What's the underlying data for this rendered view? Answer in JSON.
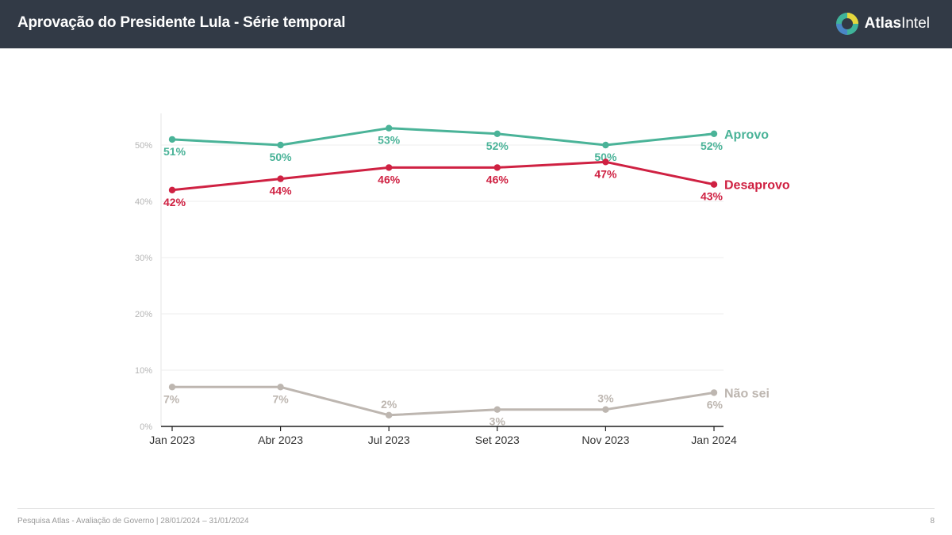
{
  "header": {
    "title": "Aprovação do Presidente Lula - Série temporal",
    "brand_bold": "Atlas",
    "brand_regular": "Intel"
  },
  "footer": {
    "source": "Pesquisa Atlas - Avaliação de Governo | 28/01/2024 – 31/01/2024",
    "page_number": "8"
  },
  "colors": {
    "header_bg": "#323a46",
    "aprovo": "#4ab398",
    "desaprovo": "#cf2142",
    "nao_sei": "#bdb6b0",
    "logo_teal": "#3fb39a",
    "logo_yellow": "#e5d63c",
    "logo_blue": "#4a86c6"
  },
  "chart_data": {
    "type": "line",
    "title": "",
    "xlabel": "",
    "ylabel": "",
    "categories": [
      "Jan 2023",
      "Abr 2023",
      "Jul 2023",
      "Set 2023",
      "Nov 2023",
      "Jan 2024"
    ],
    "ylim": [
      0,
      55
    ],
    "yticks": [
      0,
      10,
      20,
      30,
      40,
      50
    ],
    "ytick_labels": [
      "0%",
      "10%",
      "20%",
      "30%",
      "40%",
      "50%"
    ],
    "grid": true,
    "series": [
      {
        "name": "Aprovo",
        "color": "#4ab398",
        "values": [
          51,
          50,
          53,
          52,
          50,
          52
        ],
        "labels": [
          "51%",
          "50%",
          "53%",
          "52%",
          "50%",
          "52%"
        ]
      },
      {
        "name": "Desaprovo",
        "color": "#cf2142",
        "values": [
          42,
          44,
          46,
          46,
          47,
          43
        ],
        "labels": [
          "42%",
          "44%",
          "46%",
          "46%",
          "47%",
          "43%"
        ]
      },
      {
        "name": "Não sei",
        "color": "#bdb6b0",
        "values": [
          7,
          7,
          2,
          3,
          3,
          6
        ],
        "labels": [
          "7%",
          "7%",
          "2%",
          "3%",
          "3%",
          "6%"
        ]
      }
    ]
  }
}
